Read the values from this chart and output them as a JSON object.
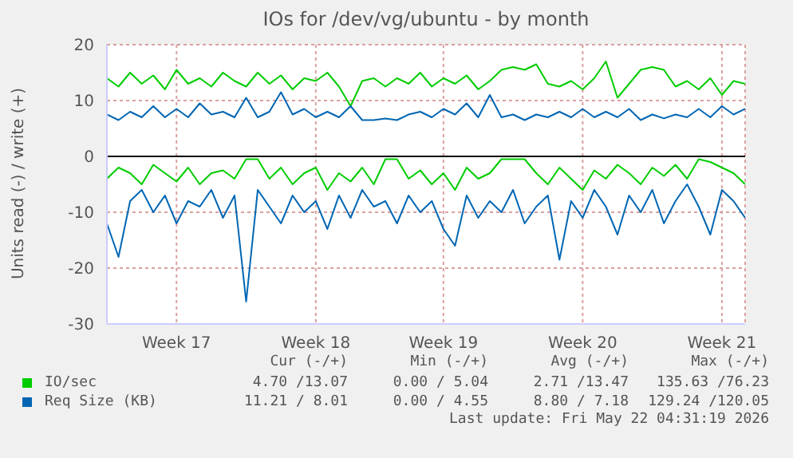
{
  "chart_data": {
    "type": "line",
    "title": "IOs for /dev/vg/ubuntu - by month",
    "ylabel": "Units read (-) / write (+)",
    "categories": [
      null,
      null,
      null,
      null,
      null,
      null,
      "Week 17",
      null,
      null,
      null,
      null,
      null,
      null,
      null,
      null,
      null,
      null,
      null,
      "Week 18",
      null,
      null,
      null,
      null,
      null,
      null,
      null,
      null,
      null,
      null,
      "Week 19",
      null,
      null,
      null,
      null,
      null,
      null,
      null,
      null,
      null,
      null,
      null,
      "Week 20",
      null,
      null,
      null,
      null,
      null,
      null,
      null,
      null,
      null,
      null,
      null,
      "Week 21",
      null,
      null
    ],
    "ylim": [
      -30,
      20
    ],
    "yticks": [
      -30,
      -20,
      -10,
      0,
      10,
      20
    ],
    "grid": true,
    "legend": "bottom",
    "ref_lines": [
      {
        "axis": "y",
        "value": 0,
        "color": "#000000"
      }
    ],
    "series": [
      {
        "name": "IO/sec",
        "color": "#00cc00",
        "values": [
          14,
          12.5,
          15,
          13,
          14.5,
          12,
          15.5,
          13,
          14,
          12.5,
          15,
          13.5,
          12.5,
          15,
          13,
          14.5,
          12,
          14,
          13.5,
          15,
          12.5,
          9,
          13.5,
          14,
          12.5,
          14,
          13,
          15,
          12.5,
          14,
          13,
          14.5,
          12,
          13.5,
          15.5,
          16,
          15.5,
          16.5,
          13,
          12.5,
          13.5,
          12,
          14,
          17,
          10.5,
          13,
          15.5,
          16,
          15.5,
          12.5,
          13.5,
          12,
          14,
          11,
          13.5,
          13
        ]
      },
      {
        "color": "#00cc00",
        "values": [
          -4,
          -2,
          -3,
          -5,
          -1.5,
          -3,
          -4.5,
          -2,
          -5,
          -3,
          -2.5,
          -4,
          -0.5,
          -0.5,
          -4,
          -2,
          -5,
          -3,
          -2,
          -6,
          -3,
          -4.5,
          -2,
          -5,
          -0.5,
          -0.5,
          -4,
          -2.5,
          -5,
          -3,
          -6,
          -2,
          -4,
          -3,
          -0.5,
          -0.5,
          -0.5,
          -3,
          -5,
          -2,
          -4,
          -6,
          -2.5,
          -4,
          -1.5,
          -3,
          -5,
          -2,
          -3.5,
          -1.5,
          -4,
          -0.5,
          -1,
          -2,
          -3,
          -5
        ]
      },
      {
        "name": "Req Size (KB)",
        "color": "#0066b3",
        "values": [
          7.5,
          6.5,
          8,
          7,
          9,
          7,
          8.5,
          7,
          9.5,
          7.5,
          8,
          7,
          10.5,
          7,
          8,
          11.5,
          7.5,
          8.5,
          7,
          8,
          7,
          9,
          6.5,
          6.5,
          6.8,
          6.5,
          7.5,
          8,
          7,
          8.5,
          7.5,
          9.5,
          7,
          11,
          7,
          7.5,
          6.5,
          7.5,
          7,
          8,
          7,
          8.5,
          7,
          8,
          7,
          8.5,
          6.5,
          7.5,
          6.8,
          7.5,
          7,
          8.5,
          7,
          9,
          7.5,
          8.5
        ]
      },
      {
        "color": "#0066b3",
        "values": [
          -12,
          -18,
          -8,
          -6,
          -10,
          -7,
          -12,
          -8,
          -9,
          -6,
          -11,
          -7,
          -26,
          -6,
          -9,
          -12,
          -7,
          -10,
          -8,
          -13,
          -7,
          -11,
          -6,
          -9,
          -8,
          -12,
          -7,
          -10,
          -8,
          -13,
          -16,
          -7,
          -11,
          -8,
          -10,
          -6,
          -12,
          -9,
          -7,
          -18.5,
          -8,
          -11,
          -6,
          -9,
          -14,
          -7,
          -10,
          -6,
          -12,
          -8,
          -5,
          -9,
          -14,
          -6,
          -8,
          -11
        ]
      }
    ],
    "annotations": [
      "Cur (-/+)",
      "Min (-/+)",
      "Avg (-/+)",
      "Max (-/+)",
      "4.70 /13.07",
      "0.00 / 5.04",
      "2.71 /13.47",
      "135.63 /76.23",
      "11.21 / 8.01",
      "0.00 / 4.55",
      "8.80 / 7.18",
      "129.24 /120.05",
      "Last update: Fri May 22 04:31:19 2026"
    ]
  }
}
